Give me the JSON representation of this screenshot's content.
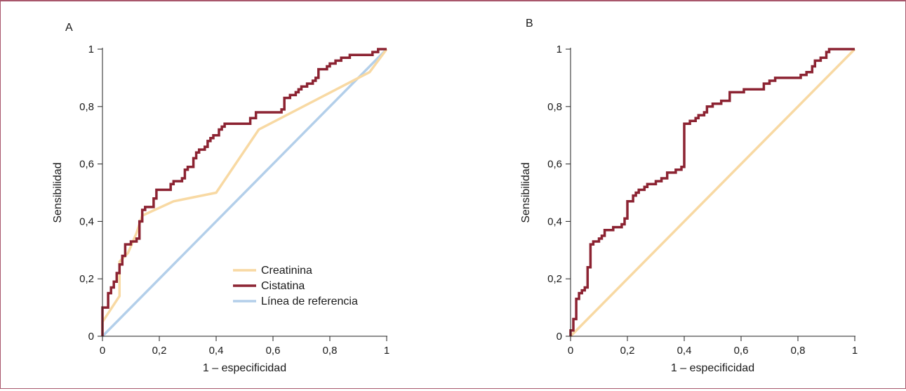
{
  "chart_data": [
    {
      "type": "line",
      "panel_label": "A",
      "xlabel": "1 – especificidad",
      "ylabel": "Sensibilidad",
      "xlim": [
        0,
        1
      ],
      "ylim": [
        0,
        1
      ],
      "x_ticks": [
        "0",
        "0,2",
        "0,4",
        "0,6",
        "0,8",
        "1"
      ],
      "y_ticks": [
        "0",
        "0,2",
        "0,4",
        "0,6",
        "0,8",
        "1"
      ],
      "legend_position": "bottom-right",
      "series": [
        {
          "name": "Creatinina",
          "color": "#f8d9a3",
          "points": [
            [
              0,
              0
            ],
            [
              0,
              0.05
            ],
            [
              0.02,
              0.08
            ],
            [
              0.04,
              0.11
            ],
            [
              0.06,
              0.14
            ],
            [
              0.06,
              0.26
            ],
            [
              0.09,
              0.29
            ],
            [
              0.12,
              0.36
            ],
            [
              0.14,
              0.42
            ],
            [
              0.25,
              0.47
            ],
            [
              0.4,
              0.5
            ],
            [
              0.55,
              0.72
            ],
            [
              0.94,
              0.92
            ],
            [
              1,
              1
            ]
          ]
        },
        {
          "name": "Cistatina",
          "color": "#8c2332",
          "points": [
            [
              0,
              0
            ],
            [
              0,
              0.1
            ],
            [
              0.02,
              0.1
            ],
            [
              0.02,
              0.15
            ],
            [
              0.03,
              0.15
            ],
            [
              0.03,
              0.17
            ],
            [
              0.04,
              0.17
            ],
            [
              0.04,
              0.19
            ],
            [
              0.05,
              0.19
            ],
            [
              0.05,
              0.22
            ],
            [
              0.06,
              0.22
            ],
            [
              0.06,
              0.25
            ],
            [
              0.07,
              0.25
            ],
            [
              0.07,
              0.28
            ],
            [
              0.08,
              0.28
            ],
            [
              0.08,
              0.32
            ],
            [
              0.1,
              0.32
            ],
            [
              0.1,
              0.33
            ],
            [
              0.12,
              0.33
            ],
            [
              0.12,
              0.34
            ],
            [
              0.13,
              0.34
            ],
            [
              0.13,
              0.4
            ],
            [
              0.14,
              0.4
            ],
            [
              0.14,
              0.44
            ],
            [
              0.15,
              0.44
            ],
            [
              0.15,
              0.45
            ],
            [
              0.18,
              0.45
            ],
            [
              0.18,
              0.48
            ],
            [
              0.19,
              0.48
            ],
            [
              0.19,
              0.51
            ],
            [
              0.24,
              0.51
            ],
            [
              0.24,
              0.53
            ],
            [
              0.25,
              0.53
            ],
            [
              0.25,
              0.54
            ],
            [
              0.28,
              0.54
            ],
            [
              0.28,
              0.55
            ],
            [
              0.29,
              0.55
            ],
            [
              0.29,
              0.58
            ],
            [
              0.3,
              0.58
            ],
            [
              0.3,
              0.59
            ],
            [
              0.32,
              0.59
            ],
            [
              0.32,
              0.62
            ],
            [
              0.33,
              0.62
            ],
            [
              0.33,
              0.64
            ],
            [
              0.34,
              0.64
            ],
            [
              0.34,
              0.65
            ],
            [
              0.36,
              0.65
            ],
            [
              0.36,
              0.66
            ],
            [
              0.37,
              0.66
            ],
            [
              0.37,
              0.68
            ],
            [
              0.38,
              0.68
            ],
            [
              0.38,
              0.69
            ],
            [
              0.39,
              0.69
            ],
            [
              0.39,
              0.7
            ],
            [
              0.41,
              0.7
            ],
            [
              0.41,
              0.72
            ],
            [
              0.42,
              0.72
            ],
            [
              0.42,
              0.73
            ],
            [
              0.43,
              0.73
            ],
            [
              0.43,
              0.74
            ],
            [
              0.52,
              0.74
            ],
            [
              0.52,
              0.76
            ],
            [
              0.54,
              0.76
            ],
            [
              0.54,
              0.78
            ],
            [
              0.63,
              0.78
            ],
            [
              0.63,
              0.79
            ],
            [
              0.64,
              0.79
            ],
            [
              0.64,
              0.83
            ],
            [
              0.66,
              0.83
            ],
            [
              0.66,
              0.84
            ],
            [
              0.68,
              0.84
            ],
            [
              0.68,
              0.85
            ],
            [
              0.69,
              0.85
            ],
            [
              0.69,
              0.86
            ],
            [
              0.7,
              0.86
            ],
            [
              0.7,
              0.87
            ],
            [
              0.72,
              0.87
            ],
            [
              0.72,
              0.88
            ],
            [
              0.74,
              0.88
            ],
            [
              0.74,
              0.89
            ],
            [
              0.75,
              0.89
            ],
            [
              0.75,
              0.9
            ],
            [
              0.76,
              0.9
            ],
            [
              0.76,
              0.93
            ],
            [
              0.79,
              0.93
            ],
            [
              0.79,
              0.94
            ],
            [
              0.8,
              0.94
            ],
            [
              0.8,
              0.95
            ],
            [
              0.82,
              0.95
            ],
            [
              0.82,
              0.96
            ],
            [
              0.84,
              0.96
            ],
            [
              0.84,
              0.97
            ],
            [
              0.87,
              0.97
            ],
            [
              0.87,
              0.98
            ],
            [
              0.95,
              0.98
            ],
            [
              0.95,
              0.99
            ],
            [
              0.97,
              0.99
            ],
            [
              0.97,
              1
            ],
            [
              1,
              1
            ]
          ]
        },
        {
          "name": "Línea de referencia",
          "color": "#b3cfea",
          "points": [
            [
              0,
              0
            ],
            [
              1,
              1
            ]
          ]
        }
      ]
    },
    {
      "type": "line",
      "panel_label": "B",
      "xlabel": "1 – especificidad",
      "ylabel": "Sensibilidad",
      "xlim": [
        0,
        1
      ],
      "ylim": [
        0,
        1
      ],
      "x_ticks": [
        "0",
        "0,2",
        "0,4",
        "0,6",
        "0,8",
        "1"
      ],
      "y_ticks": [
        "0",
        "0,2",
        "0,4",
        "0,6",
        "0,8",
        "1"
      ],
      "series": [
        {
          "color": "#8c2332",
          "points": [
            [
              0,
              0
            ],
            [
              0,
              0.02
            ],
            [
              0.01,
              0.02
            ],
            [
              0.01,
              0.06
            ],
            [
              0.02,
              0.06
            ],
            [
              0.02,
              0.13
            ],
            [
              0.03,
              0.13
            ],
            [
              0.03,
              0.15
            ],
            [
              0.04,
              0.15
            ],
            [
              0.04,
              0.16
            ],
            [
              0.05,
              0.16
            ],
            [
              0.05,
              0.17
            ],
            [
              0.06,
              0.17
            ],
            [
              0.06,
              0.24
            ],
            [
              0.07,
              0.24
            ],
            [
              0.07,
              0.32
            ],
            [
              0.08,
              0.32
            ],
            [
              0.08,
              0.33
            ],
            [
              0.1,
              0.33
            ],
            [
              0.1,
              0.34
            ],
            [
              0.11,
              0.34
            ],
            [
              0.11,
              0.35
            ],
            [
              0.12,
              0.35
            ],
            [
              0.12,
              0.37
            ],
            [
              0.15,
              0.37
            ],
            [
              0.15,
              0.38
            ],
            [
              0.18,
              0.38
            ],
            [
              0.18,
              0.39
            ],
            [
              0.19,
              0.39
            ],
            [
              0.19,
              0.41
            ],
            [
              0.2,
              0.41
            ],
            [
              0.2,
              0.47
            ],
            [
              0.22,
              0.47
            ],
            [
              0.22,
              0.49
            ],
            [
              0.23,
              0.49
            ],
            [
              0.23,
              0.5
            ],
            [
              0.24,
              0.5
            ],
            [
              0.24,
              0.51
            ],
            [
              0.26,
              0.51
            ],
            [
              0.26,
              0.52
            ],
            [
              0.27,
              0.52
            ],
            [
              0.27,
              0.53
            ],
            [
              0.3,
              0.53
            ],
            [
              0.3,
              0.54
            ],
            [
              0.32,
              0.54
            ],
            [
              0.32,
              0.55
            ],
            [
              0.34,
              0.55
            ],
            [
              0.34,
              0.57
            ],
            [
              0.37,
              0.57
            ],
            [
              0.37,
              0.58
            ],
            [
              0.39,
              0.58
            ],
            [
              0.39,
              0.59
            ],
            [
              0.4,
              0.59
            ],
            [
              0.4,
              0.74
            ],
            [
              0.42,
              0.74
            ],
            [
              0.42,
              0.75
            ],
            [
              0.44,
              0.75
            ],
            [
              0.44,
              0.76
            ],
            [
              0.45,
              0.76
            ],
            [
              0.45,
              0.77
            ],
            [
              0.47,
              0.77
            ],
            [
              0.47,
              0.78
            ],
            [
              0.48,
              0.78
            ],
            [
              0.48,
              0.8
            ],
            [
              0.5,
              0.8
            ],
            [
              0.5,
              0.81
            ],
            [
              0.53,
              0.81
            ],
            [
              0.53,
              0.82
            ],
            [
              0.56,
              0.82
            ],
            [
              0.56,
              0.85
            ],
            [
              0.61,
              0.85
            ],
            [
              0.61,
              0.86
            ],
            [
              0.68,
              0.86
            ],
            [
              0.68,
              0.88
            ],
            [
              0.7,
              0.88
            ],
            [
              0.7,
              0.89
            ],
            [
              0.72,
              0.89
            ],
            [
              0.72,
              0.9
            ],
            [
              0.81,
              0.9
            ],
            [
              0.81,
              0.91
            ],
            [
              0.83,
              0.91
            ],
            [
              0.83,
              0.92
            ],
            [
              0.85,
              0.92
            ],
            [
              0.85,
              0.94
            ],
            [
              0.86,
              0.94
            ],
            [
              0.86,
              0.96
            ],
            [
              0.88,
              0.96
            ],
            [
              0.88,
              0.97
            ],
            [
              0.9,
              0.97
            ],
            [
              0.9,
              0.99
            ],
            [
              0.91,
              0.99
            ],
            [
              0.91,
              1
            ],
            [
              1,
              1
            ]
          ]
        },
        {
          "color": "#f8d9a3",
          "points": [
            [
              0,
              0
            ],
            [
              1,
              1
            ]
          ]
        }
      ]
    }
  ]
}
